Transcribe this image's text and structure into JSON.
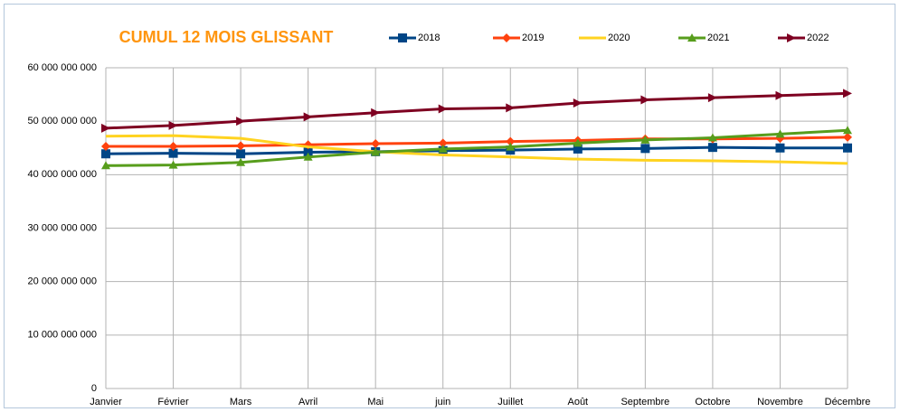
{
  "chart_data": {
    "type": "line",
    "title": "CUMUL 12 MOIS GLISSANT",
    "categories": [
      "Janvier",
      "Février",
      "Mars",
      "Avril",
      "Mai",
      "juin",
      "Juillet",
      "Août",
      "Septembre",
      "Octobre",
      "Novembre",
      "Décembre"
    ],
    "series": [
      {
        "name": "2018",
        "color": "#004586",
        "marker": "square",
        "values": [
          43900000000,
          44000000000,
          43900000000,
          44200000000,
          44300000000,
          44500000000,
          44600000000,
          44800000000,
          44900000000,
          45100000000,
          45000000000,
          45000000000
        ]
      },
      {
        "name": "2019",
        "color": "#ff420e",
        "marker": "diamond",
        "values": [
          45300000000,
          45300000000,
          45400000000,
          45600000000,
          45800000000,
          45900000000,
          46200000000,
          46400000000,
          46700000000,
          46700000000,
          46800000000,
          47000000000
        ]
      },
      {
        "name": "2020",
        "color": "#ffd320",
        "values": [
          47200000000,
          47300000000,
          46800000000,
          45200000000,
          44300000000,
          43700000000,
          43300000000,
          42900000000,
          42700000000,
          42600000000,
          42400000000,
          42100000000
        ]
      },
      {
        "name": "2021",
        "color": "#579d1c",
        "marker": "triangle",
        "values": [
          41700000000,
          41800000000,
          42300000000,
          43300000000,
          44200000000,
          44800000000,
          45200000000,
          45900000000,
          46500000000,
          46900000000,
          47600000000,
          48300000000
        ]
      },
      {
        "name": "2022",
        "color": "#7e0021",
        "marker": "arrow",
        "values": [
          48700000000,
          49200000000,
          50000000000,
          50800000000,
          51600000000,
          52300000000,
          52500000000,
          53400000000,
          54000000000,
          54400000000,
          54800000000,
          55200000000
        ]
      }
    ],
    "ylim": [
      0,
      60000000000
    ],
    "yticks": [
      0,
      {
        "value": 10000000000,
        "label": "10 000 000 000"
      },
      {
        "value": 20000000000,
        "label": "20 000 000 000"
      },
      {
        "value": 30000000000,
        "label": "30 000 000 000"
      },
      {
        "value": 40000000000,
        "label": "40 000 000 000"
      },
      {
        "value": 50000000000,
        "label": "50 000 000 000"
      },
      {
        "value": 60000000000,
        "label": "60 000 000 000"
      }
    ],
    "grid": true,
    "title_color": "#ff950e"
  }
}
